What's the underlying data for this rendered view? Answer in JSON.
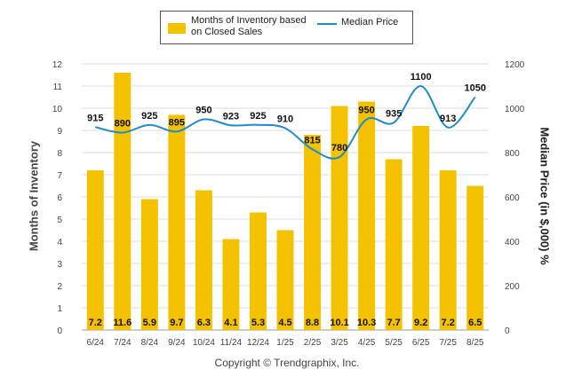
{
  "chart_data": {
    "type": "bar",
    "categories": [
      "6/24",
      "7/24",
      "8/24",
      "9/24",
      "10/24",
      "11/24",
      "12/24",
      "1/25",
      "2/25",
      "3/25",
      "4/25",
      "5/25",
      "6/25",
      "7/25",
      "8/25"
    ],
    "series": [
      {
        "name": "Months of Inventory based on Closed Sales",
        "type": "bar",
        "axis": "left",
        "values": [
          7.2,
          11.6,
          5.9,
          9.7,
          6.3,
          4.1,
          5.3,
          4.5,
          8.8,
          10.1,
          10.3,
          7.7,
          9.2,
          7.2,
          6.5
        ],
        "value_labels": [
          "7.2",
          "11.6",
          "5.9",
          "9.7",
          "6.3",
          "4.1",
          "5.3",
          "4.5",
          "8.8",
          "10.1",
          "10.3",
          "7.7",
          "9.2",
          "7.2",
          "6.5"
        ],
        "color": "#F5C200"
      },
      {
        "name": "Median Price",
        "type": "line",
        "axis": "right",
        "values": [
          915,
          890,
          925,
          895,
          950,
          923,
          925,
          910,
          815,
          780,
          950,
          935,
          1100,
          913,
          1050
        ],
        "value_labels": [
          "915",
          "890",
          "925",
          "895",
          "950",
          "923",
          "925",
          "910",
          "815",
          "780",
          "950",
          "935",
          "1100",
          "913",
          "1050"
        ],
        "color": "#1E8BD0"
      }
    ],
    "legend": {
      "bar_label_line1": "Months of Inventory based",
      "bar_label_line2": "on Closed Sales",
      "line_label": "Median Price",
      "placement": "top-center"
    },
    "ylabel": "Months of Inventory",
    "ylabel_right": "Median Price (in $,000) %",
    "ylim": [
      0,
      12
    ],
    "ylim_right": [
      0,
      1200
    ],
    "yticks": [
      "0",
      "1",
      "2",
      "3",
      "4",
      "5",
      "6",
      "7",
      "8",
      "9",
      "10",
      "11",
      "12"
    ],
    "yticks_right": [
      "0",
      "200",
      "400",
      "600",
      "800",
      "1000",
      "1200"
    ],
    "grid": true
  },
  "footer": {
    "copyright": "Copyright © Trendgraphix, Inc."
  }
}
